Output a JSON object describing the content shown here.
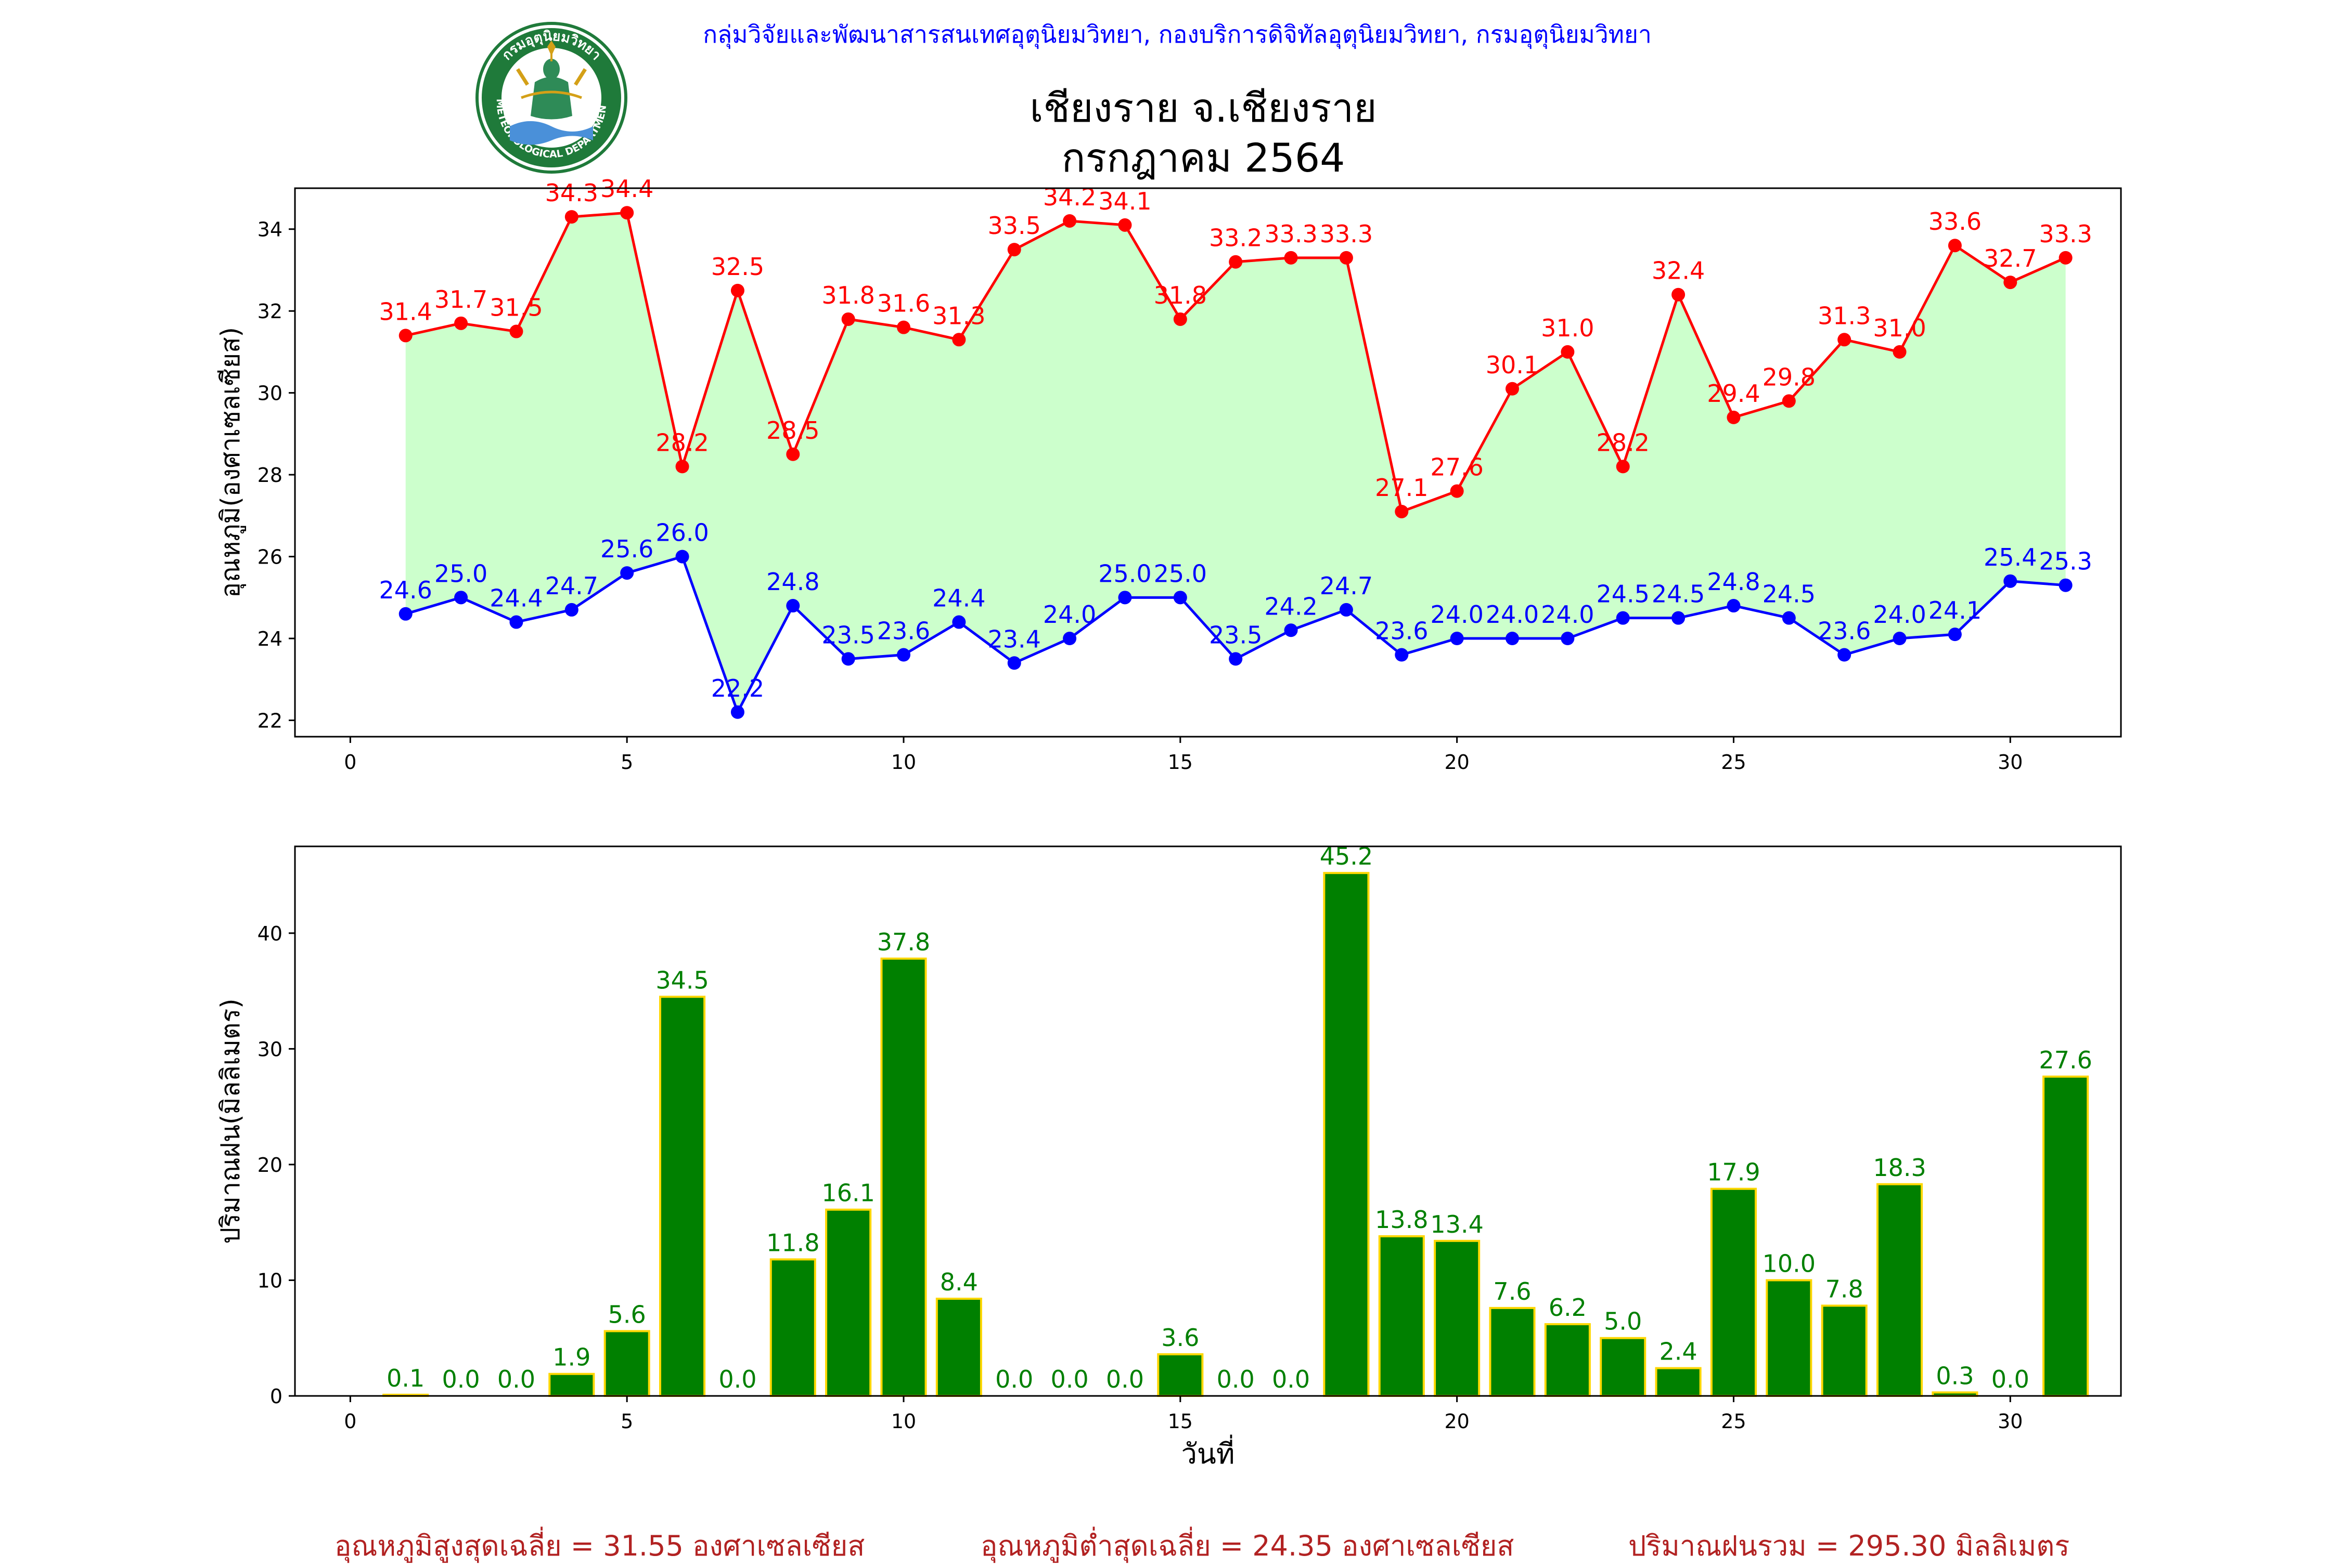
{
  "header": {
    "credit": "กลุ่มวิจัยและพัฒนาสารสนเทศอุตุนิยมวิทยา, กองบริการดิจิทัลอุตุนิยมวิทยา, กรมอุตุนิยมวิทยา",
    "title_line1": "เชียงราย จ.เชียงราย",
    "title_line2": "กรกฎาคม 2564",
    "logo_text_top": "กรมอุตุนิยมวิทยา",
    "logo_text_bottom": "METEOROLOGICAL DEPARTMENT"
  },
  "chart_data": [
    {
      "type": "line",
      "ylabel": "อุณหภูมิ(องศาเซลเซียส)",
      "xlabel": "",
      "xlim": [
        -1,
        32
      ],
      "ylim": [
        21.6,
        35.0
      ],
      "xticks": [
        0,
        5,
        10,
        15,
        20,
        25,
        30
      ],
      "yticks": [
        22,
        24,
        26,
        28,
        30,
        32,
        34
      ],
      "x": [
        1,
        2,
        3,
        4,
        5,
        6,
        7,
        8,
        9,
        10,
        11,
        12,
        13,
        14,
        15,
        16,
        17,
        18,
        19,
        20,
        21,
        22,
        23,
        24,
        25,
        26,
        27,
        28,
        29,
        30,
        31
      ],
      "fill_between": true,
      "fill_color": "#ccffcc",
      "series": [
        {
          "color": "#ff0000",
          "values": [
            31.4,
            31.7,
            31.5,
            34.3,
            34.4,
            28.2,
            32.5,
            28.5,
            31.8,
            31.6,
            31.3,
            33.5,
            34.2,
            34.1,
            31.8,
            33.2,
            33.3,
            33.3,
            27.1,
            27.6,
            30.1,
            31.0,
            28.2,
            32.4,
            29.4,
            29.8,
            31.3,
            31.0,
            33.6,
            32.7,
            33.3
          ]
        },
        {
          "color": "#0000ff",
          "values": [
            24.6,
            25.0,
            24.4,
            24.7,
            25.6,
            26.0,
            22.2,
            24.8,
            23.5,
            23.6,
            24.4,
            23.4,
            24.0,
            25.0,
            25.0,
            23.5,
            24.2,
            24.7,
            23.6,
            24.0,
            24.0,
            24.0,
            24.5,
            24.5,
            24.8,
            24.5,
            23.6,
            24.0,
            24.1,
            25.4,
            25.3
          ]
        }
      ]
    },
    {
      "type": "bar",
      "ylabel": "ปริมาณฝน(มิลลิเมตร)",
      "xlabel": "วันที่",
      "xlim": [
        -1,
        32
      ],
      "ylim": [
        0,
        47.5
      ],
      "xticks": [
        0,
        5,
        10,
        15,
        20,
        25,
        30
      ],
      "yticks": [
        0,
        10,
        20,
        30,
        40
      ],
      "x": [
        1,
        2,
        3,
        4,
        5,
        6,
        7,
        8,
        9,
        10,
        11,
        12,
        13,
        14,
        15,
        16,
        17,
        18,
        19,
        20,
        21,
        22,
        23,
        24,
        25,
        26,
        27,
        28,
        29,
        30,
        31
      ],
      "values": [
        0.1,
        0.0,
        0.0,
        1.9,
        5.6,
        34.5,
        0.0,
        11.8,
        16.1,
        37.8,
        8.4,
        0.0,
        0.0,
        0.0,
        3.6,
        0.0,
        0.0,
        45.2,
        13.8,
        13.4,
        7.6,
        6.2,
        5.0,
        2.4,
        17.9,
        10.0,
        7.8,
        18.3,
        0.3,
        0.0,
        27.6
      ],
      "bar_color": "#008000",
      "edge_color": "#ffd700",
      "label_color": "#008000"
    }
  ],
  "summary": {
    "avg_max": "อุณหภูมิสูงสุดเฉลี่ย = 31.55 องศาเซลเซียส",
    "avg_min": "อุณหภูมิต่ำสุดเฉลี่ย = 24.35 องศาเซลเซียส",
    "total_rain": "ปริมาณฝนรวม = 295.30 มิลลิเมตร"
  }
}
